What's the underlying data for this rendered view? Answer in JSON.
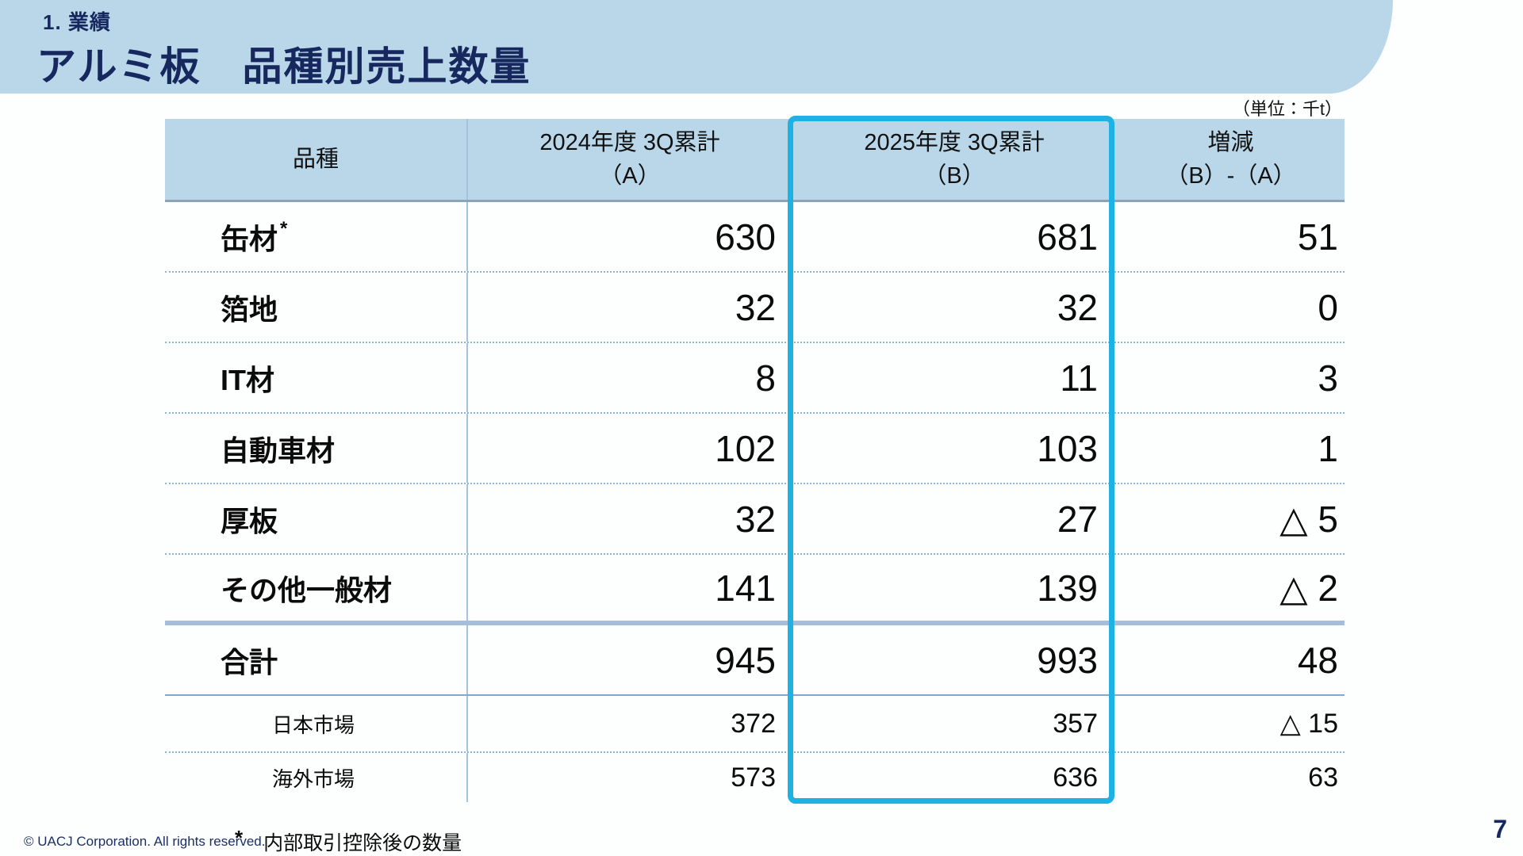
{
  "page": {
    "eyebrow": "1. 業績",
    "title": "アルミ板　品種別売上数量",
    "unit_note": "（単位：千t）",
    "copyright": "© UACJ Corporation. All rights reserved.",
    "footnote_mark": "*",
    "footnote_text": "内部取引控除後の数量",
    "page_number": "7"
  },
  "colors": {
    "band_blue": "#b9d7e9",
    "navy_text": "#16285e",
    "highlight_cyan": "#1db1e4",
    "total_rule": "#a4bedb"
  },
  "table": {
    "columns": [
      {
        "label": "品種",
        "sub": ""
      },
      {
        "label": "2024年度 3Q累計",
        "sub": "（A）"
      },
      {
        "label": "2025年度 3Q累計",
        "sub": "（B）"
      },
      {
        "label": "増減",
        "sub": "（B）-（A）"
      }
    ],
    "rows": [
      {
        "label": "缶材",
        "note": "*",
        "a": "630",
        "b": "681",
        "diff": "51"
      },
      {
        "label": "箔地",
        "a": "32",
        "b": "32",
        "diff": "0"
      },
      {
        "label": "IT材",
        "a": "8",
        "b": "11",
        "diff": "3"
      },
      {
        "label": "自動車材",
        "a": "102",
        "b": "103",
        "diff": "1"
      },
      {
        "label": "厚板",
        "a": "32",
        "b": "27",
        "diff": "△ 5"
      },
      {
        "label": "その他一般材",
        "a": "141",
        "b": "139",
        "diff": "△ 2"
      },
      {
        "label": "合計",
        "a": "945",
        "b": "993",
        "diff": "48"
      },
      {
        "label": "日本市場",
        "a": "372",
        "b": "357",
        "diff": "△ 15"
      },
      {
        "label": "海外市場",
        "a": "573",
        "b": "636",
        "diff": "63"
      }
    ]
  },
  "chart_data": {
    "type": "table",
    "title": "アルミ板 品種別売上数量 (単位: 千t)",
    "categories": [
      "缶材",
      "箔地",
      "IT材",
      "自動車材",
      "厚板",
      "その他一般材",
      "合計",
      "日本市場",
      "海外市場"
    ],
    "series": [
      {
        "name": "2024年度 3Q累計 (A)",
        "values": [
          630,
          32,
          8,
          102,
          32,
          141,
          945,
          372,
          573
        ]
      },
      {
        "name": "2025年度 3Q累計 (B)",
        "values": [
          681,
          32,
          11,
          103,
          27,
          139,
          993,
          357,
          636
        ]
      },
      {
        "name": "増減 (B)-(A)",
        "values": [
          51,
          0,
          3,
          1,
          -5,
          -2,
          48,
          -15,
          63
        ]
      }
    ]
  }
}
